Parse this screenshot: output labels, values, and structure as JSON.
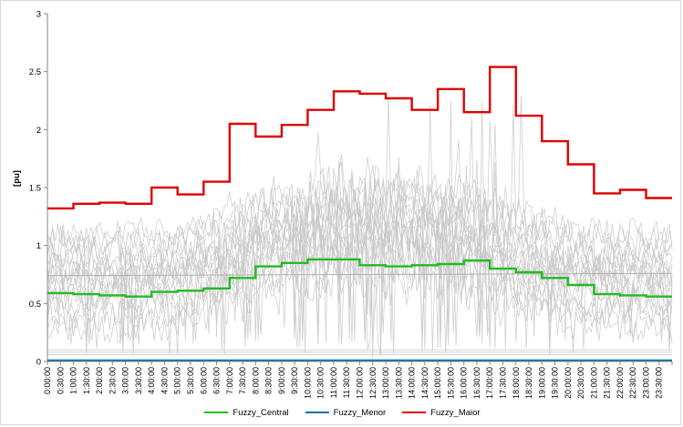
{
  "chart_data": {
    "type": "line",
    "ylabel": "[pu]",
    "xlabel": "",
    "ylim": [
      0,
      3
    ],
    "yticks": [
      "0",
      "0.5",
      "1",
      "1.5",
      "2",
      "2.5",
      "3"
    ],
    "x_tick_labels": [
      "0:00:00",
      "0:30:00",
      "1:00:00",
      "1:30:00",
      "2:00:00",
      "2:30:00",
      "3:00:00",
      "3:30:00",
      "4:00:00",
      "4:30:00",
      "5:00:00",
      "5:30:00",
      "6:00:00",
      "6:30:00",
      "7:00:00",
      "7:30:00",
      "8:00:00",
      "8:30:00",
      "9:00:00",
      "9:30:00",
      "10:00:00",
      "10:30:00",
      "11:00:00",
      "11:30:00",
      "12:00:00",
      "12:30:00",
      "13:00:00",
      "13:30:00",
      "14:00:00",
      "14:30:00",
      "15:00:00",
      "15:30:00",
      "16:00:00",
      "16:30:00",
      "17:00:00",
      "17:30:00",
      "18:00:00",
      "18:30:00",
      "19:00:00",
      "19:30:00",
      "20:00:00",
      "20:30:00",
      "21:00:00",
      "21:30:00",
      "22:00:00",
      "22:30:00",
      "23:00:00",
      "23:30:00"
    ],
    "grid": false,
    "legend_position": "bottom",
    "series": [
      {
        "name": "Fuzzy_Central",
        "color": "#22bb22",
        "step": true,
        "values": [
          0.59,
          0.59,
          0.58,
          0.58,
          0.57,
          0.57,
          0.56,
          0.56,
          0.6,
          0.6,
          0.61,
          0.61,
          0.63,
          0.63,
          0.72,
          0.72,
          0.82,
          0.82,
          0.85,
          0.85,
          0.88,
          0.88,
          0.88,
          0.88,
          0.83,
          0.83,
          0.82,
          0.82,
          0.83,
          0.83,
          0.84,
          0.84,
          0.87,
          0.87,
          0.8,
          0.8,
          0.77,
          0.77,
          0.72,
          0.72,
          0.66,
          0.66,
          0.58,
          0.58,
          0.57,
          0.57,
          0.56,
          0.56
        ]
      },
      {
        "name": "Fuzzy_Menor",
        "color": "#1f6fb4",
        "step": true,
        "values": [
          0.01,
          0.01,
          0.01,
          0.01,
          0.01,
          0.01,
          0.01,
          0.01,
          0.01,
          0.01,
          0.01,
          0.01,
          0.01,
          0.01,
          0.01,
          0.01,
          0.01,
          0.01,
          0.01,
          0.01,
          0.01,
          0.01,
          0.01,
          0.01,
          0.01,
          0.01,
          0.01,
          0.01,
          0.01,
          0.01,
          0.01,
          0.01,
          0.01,
          0.01,
          0.01,
          0.01,
          0.01,
          0.01,
          0.01,
          0.01,
          0.01,
          0.01,
          0.01,
          0.01,
          0.01,
          0.01,
          0.01,
          0.01
        ]
      },
      {
        "name": "Fuzzy_Maior",
        "color": "#e00000",
        "step": true,
        "values": [
          1.32,
          1.32,
          1.36,
          1.36,
          1.37,
          1.37,
          1.36,
          1.36,
          1.5,
          1.5,
          1.44,
          1.44,
          1.55,
          1.55,
          2.05,
          2.05,
          1.94,
          1.94,
          2.04,
          2.04,
          2.17,
          2.17,
          2.33,
          2.33,
          2.31,
          2.31,
          2.27,
          2.27,
          2.17,
          2.17,
          2.35,
          2.35,
          2.15,
          2.15,
          2.54,
          2.54,
          2.12,
          2.12,
          1.9,
          1.9,
          1.7,
          1.7,
          1.45,
          1.45,
          1.48,
          1.48,
          1.41,
          1.41
        ]
      }
    ]
  },
  "background_series_color": "#c8c8c8"
}
